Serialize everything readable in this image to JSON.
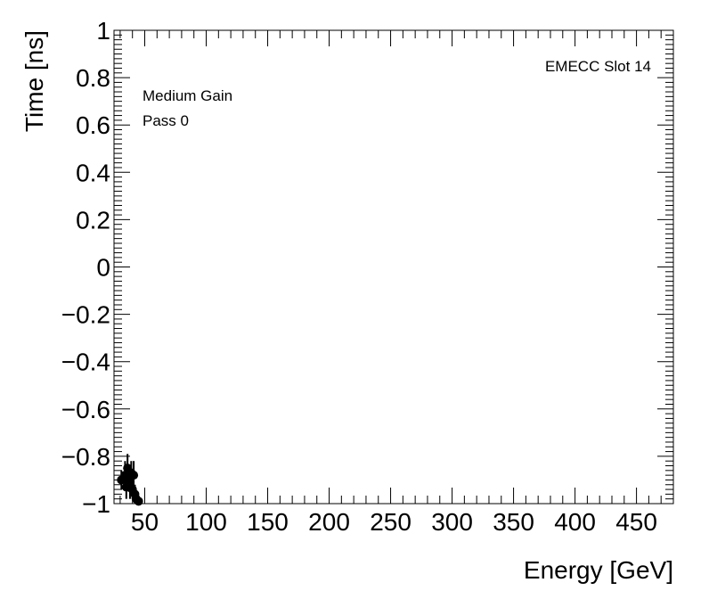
{
  "chart_data": {
    "type": "scatter",
    "title": "",
    "xlabel": "Energy [GeV]",
    "ylabel": "Time [ns]",
    "xlim": [
      25,
      480
    ],
    "ylim": [
      -1,
      1
    ],
    "x_ticks": [
      50,
      100,
      150,
      200,
      250,
      300,
      350,
      400,
      450
    ],
    "x_tick_labels": [
      "50",
      "100",
      "150",
      "200",
      "250",
      "300",
      "350",
      "400",
      "450"
    ],
    "y_ticks": [
      -1,
      -0.8,
      -0.6,
      -0.4,
      -0.2,
      0,
      0.2,
      0.4,
      0.6,
      0.8,
      1
    ],
    "y_tick_labels": [
      "−1",
      "−0.8",
      "−0.6",
      "−0.4",
      "−0.2",
      "0",
      "0.2",
      "0.4",
      "0.6",
      "0.8",
      "1"
    ],
    "grid": false,
    "annotations": {
      "top_right": "EMECC Slot 14",
      "line1": "Medium Gain",
      "line2": "Pass 0"
    },
    "series": [
      {
        "points": [
          {
            "x": 31,
            "y": -0.9,
            "yerr": 0.04,
            "xerr": 2
          },
          {
            "x": 34,
            "y": -0.88,
            "yerr": 0.06,
            "xerr": 1
          },
          {
            "x": 35,
            "y": -0.93,
            "yerr": 0.05,
            "xerr": 1
          },
          {
            "x": 36,
            "y": -0.85,
            "yerr": 0.06,
            "xerr": 1
          },
          {
            "x": 37,
            "y": -0.9,
            "yerr": 0.05,
            "xerr": 1
          },
          {
            "x": 38,
            "y": -0.92,
            "yerr": 0.06,
            "xerr": 1
          },
          {
            "x": 39,
            "y": -0.87,
            "yerr": 0.05,
            "xerr": 1
          },
          {
            "x": 40,
            "y": -0.94,
            "yerr": 0.04,
            "xerr": 1
          },
          {
            "x": 41,
            "y": -0.88,
            "yerr": 0.06,
            "xerr": 1
          },
          {
            "x": 42,
            "y": -0.96,
            "yerr": 0.04,
            "xerr": 1
          },
          {
            "x": 43,
            "y": -0.98,
            "yerr": 0.03,
            "xerr": 1
          },
          {
            "x": 45,
            "y": -0.99,
            "yerr": 0.02,
            "xerr": 2
          }
        ],
        "color": "#000000"
      }
    ]
  }
}
